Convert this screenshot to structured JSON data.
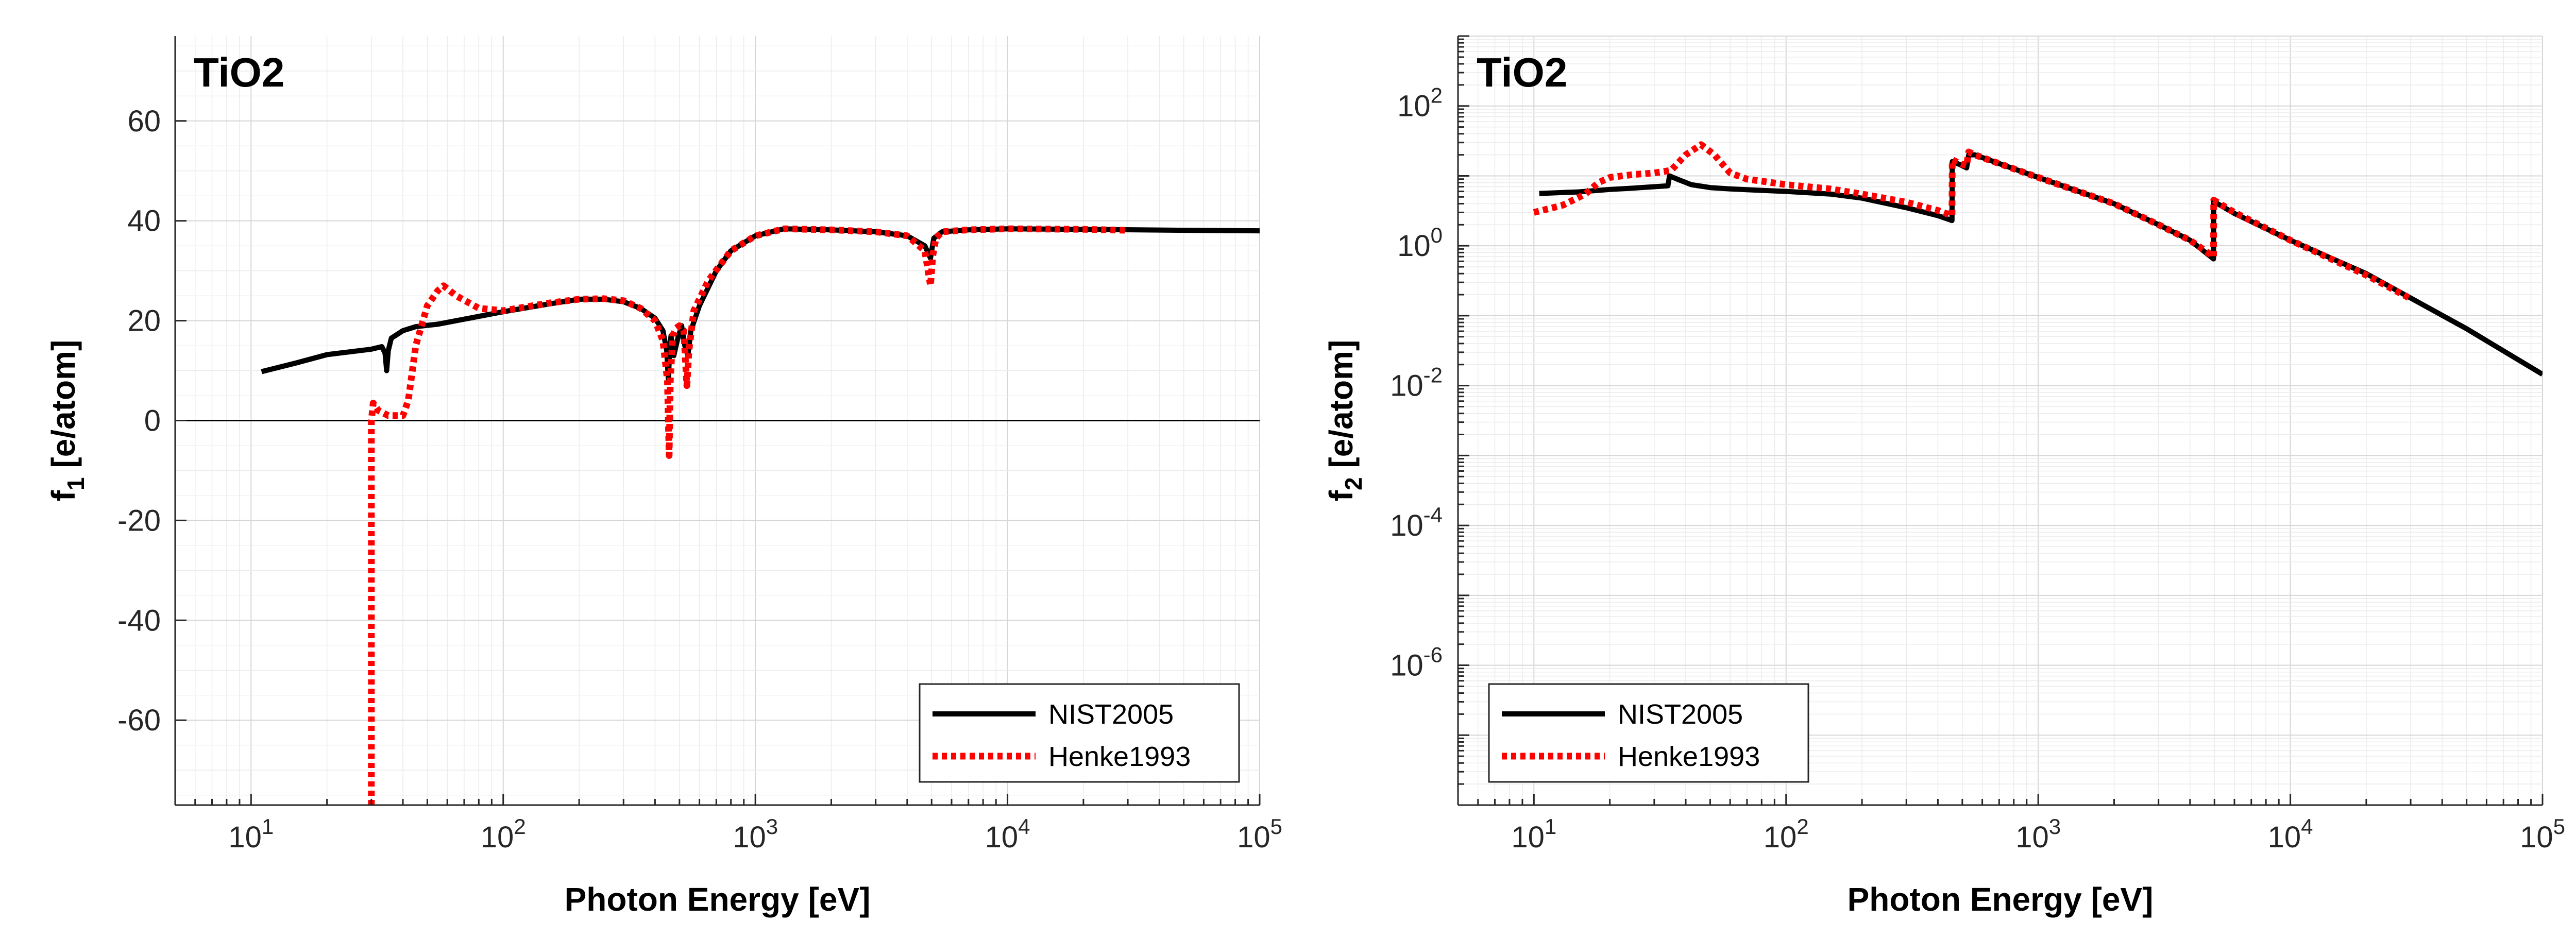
{
  "chart_data": [
    {
      "type": "line",
      "title": "TiO2",
      "xlabel": "Photon Energy [eV]",
      "ylabel_main": "f",
      "ylabel_sub": "1",
      "ylabel_rest": " [e/atom]",
      "xscale": "log",
      "yscale": "linear",
      "xlim": [
        5,
        100000
      ],
      "ylim": [
        -77,
        77
      ],
      "x_ticks": [
        {
          "value": 10,
          "base": "10",
          "exp": "1"
        },
        {
          "value": 100,
          "base": "10",
          "exp": "2"
        },
        {
          "value": 1000,
          "base": "10",
          "exp": "3"
        },
        {
          "value": 10000,
          "base": "10",
          "exp": "4"
        },
        {
          "value": 100000,
          "base": "10",
          "exp": "5"
        }
      ],
      "y_ticks": [
        {
          "value": 60,
          "label": "60"
        },
        {
          "value": 40,
          "label": "40"
        },
        {
          "value": 20,
          "label": "20"
        },
        {
          "value": 0,
          "label": "0"
        },
        {
          "value": -20,
          "label": "-20"
        },
        {
          "value": -40,
          "label": "-40"
        },
        {
          "value": -60,
          "label": "-60"
        }
      ],
      "grid": true,
      "zero_line": true,
      "legend_position": "bottom-right",
      "series": [
        {
          "name": "NIST2005",
          "color": "#000000",
          "style": "solid",
          "points": [
            [
              11,
              9.8
            ],
            [
              15,
              11.5
            ],
            [
              20,
              13.2
            ],
            [
              25,
              13.8
            ],
            [
              30,
              14.3
            ],
            [
              33,
              14.8
            ],
            [
              34,
              13.5
            ],
            [
              34.5,
              10
            ],
            [
              35,
              14
            ],
            [
              36,
              16.5
            ],
            [
              40,
              18
            ],
            [
              45,
              18.8
            ],
            [
              55,
              19.3
            ],
            [
              70,
              20.3
            ],
            [
              100,
              21.8
            ],
            [
              150,
              23.3
            ],
            [
              200,
              24.3
            ],
            [
              250,
              24.3
            ],
            [
              300,
              23.8
            ],
            [
              350,
              22.5
            ],
            [
              400,
              20.5
            ],
            [
              430,
              18
            ],
            [
              445,
              14
            ],
            [
              452,
              8
            ],
            [
              457,
              14
            ],
            [
              463,
              17
            ],
            [
              475,
              13
            ],
            [
              490,
              16
            ],
            [
              510,
              19
            ],
            [
              525,
              15
            ],
            [
              540,
              13
            ],
            [
              555,
              18
            ],
            [
              600,
              23
            ],
            [
              700,
              30
            ],
            [
              800,
              34
            ],
            [
              1000,
              37
            ],
            [
              1300,
              38.4
            ],
            [
              2000,
              38.2
            ],
            [
              3000,
              37.8
            ],
            [
              4000,
              37
            ],
            [
              4700,
              35
            ],
            [
              4950,
              32.5
            ],
            [
              5000,
              34
            ],
            [
              5100,
              36.5
            ],
            [
              5500,
              37.8
            ],
            [
              7000,
              38.2
            ],
            [
              10000,
              38.4
            ],
            [
              20000,
              38.3
            ],
            [
              50000,
              38.1
            ],
            [
              100000,
              38
            ]
          ]
        },
        {
          "name": "Henke1993",
          "color": "#ff0000",
          "style": "dotted",
          "points": [
            [
              30,
              -77
            ],
            [
              30,
              0
            ],
            [
              30.5,
              3.5
            ],
            [
              32,
              2
            ],
            [
              35,
              1
            ],
            [
              40,
              1
            ],
            [
              42,
              4
            ],
            [
              45,
              15
            ],
            [
              50,
              23
            ],
            [
              55,
              26
            ],
            [
              58,
              27
            ],
            [
              65,
              25
            ],
            [
              80,
              22.5
            ],
            [
              100,
              22
            ],
            [
              150,
              23.5
            ],
            [
              200,
              24.3
            ],
            [
              250,
              24.4
            ],
            [
              300,
              24
            ],
            [
              350,
              22.5
            ],
            [
              400,
              20
            ],
            [
              430,
              16
            ],
            [
              448,
              8
            ],
            [
              455,
              -7
            ],
            [
              460,
              8
            ],
            [
              470,
              17
            ],
            [
              485,
              18.5
            ],
            [
              500,
              19
            ],
            [
              520,
              18
            ],
            [
              535,
              7
            ],
            [
              545,
              14
            ],
            [
              570,
              22
            ],
            [
              650,
              28
            ],
            [
              800,
              34
            ],
            [
              1000,
              37
            ],
            [
              1300,
              38.4
            ],
            [
              2000,
              38.2
            ],
            [
              3000,
              37.8
            ],
            [
              4000,
              37
            ],
            [
              4700,
              34
            ],
            [
              4950,
              27
            ],
            [
              5050,
              33
            ],
            [
              5200,
              36.5
            ],
            [
              5500,
              37.8
            ],
            [
              7000,
              38.2
            ],
            [
              10000,
              38.4
            ],
            [
              20000,
              38.3
            ],
            [
              30000,
              38.1
            ]
          ]
        }
      ]
    },
    {
      "type": "line",
      "title": "TiO2",
      "xlabel": "Photon Energy [eV]",
      "ylabel_main": "f",
      "ylabel_sub": "2",
      "ylabel_rest": " [e/atom]",
      "xscale": "log",
      "yscale": "log",
      "xlim": [
        5,
        100000
      ],
      "ylim": [
        1e-08,
        1000
      ],
      "x_ticks": [
        {
          "value": 10,
          "base": "10",
          "exp": "1"
        },
        {
          "value": 100,
          "base": "10",
          "exp": "2"
        },
        {
          "value": 1000,
          "base": "10",
          "exp": "3"
        },
        {
          "value": 10000,
          "base": "10",
          "exp": "4"
        },
        {
          "value": 100000,
          "base": "10",
          "exp": "5"
        }
      ],
      "y_ticks": [
        {
          "value": 100,
          "base": "10",
          "exp": "2"
        },
        {
          "value": 1,
          "base": "10",
          "exp": "0"
        },
        {
          "value": 0.01,
          "base": "10",
          "exp": "-2"
        },
        {
          "value": 0.0001,
          "base": "10",
          "exp": "-4"
        },
        {
          "value": 1e-06,
          "base": "10",
          "exp": "-6"
        }
      ],
      "grid": true,
      "zero_line": false,
      "legend_position": "bottom-left",
      "series": [
        {
          "name": "NIST2005",
          "color": "#000000",
          "style": "solid",
          "points": [
            [
              10.5,
              5.6
            ],
            [
              15,
              5.9
            ],
            [
              20,
              6.4
            ],
            [
              25,
              6.7
            ],
            [
              30,
              7.0
            ],
            [
              34,
              7.2
            ],
            [
              34.5,
              10
            ],
            [
              37,
              9
            ],
            [
              42,
              7.5
            ],
            [
              50,
              6.8
            ],
            [
              60,
              6.5
            ],
            [
              80,
              6.2
            ],
            [
              100,
              6.0
            ],
            [
              150,
              5.5
            ],
            [
              200,
              4.8
            ],
            [
              300,
              3.5
            ],
            [
              400,
              2.7
            ],
            [
              455,
              2.3
            ],
            [
              456,
              16
            ],
            [
              490,
              14.5
            ],
            [
              520,
              13
            ],
            [
              530,
              20
            ],
            [
              560,
              20
            ],
            [
              700,
              15
            ],
            [
              1000,
              9.5
            ],
            [
              2000,
              4
            ],
            [
              3000,
              2
            ],
            [
              4000,
              1.2
            ],
            [
              4960,
              0.65
            ],
            [
              4965,
              4.3
            ],
            [
              6000,
              2.9
            ],
            [
              10000,
              1.2
            ],
            [
              20000,
              0.4
            ],
            [
              50000,
              0.065
            ],
            [
              100000,
              0.0145
            ]
          ]
        },
        {
          "name": "Henke1993",
          "color": "#ff0000",
          "style": "dotted",
          "points": [
            [
              10,
              3
            ],
            [
              13,
              3.8
            ],
            [
              16,
              5.5
            ],
            [
              18,
              8
            ],
            [
              20,
              9.5
            ],
            [
              25,
              10.5
            ],
            [
              30,
              11
            ],
            [
              35,
              12
            ],
            [
              40,
              20
            ],
            [
              46,
              28
            ],
            [
              52,
              20
            ],
            [
              60,
              11
            ],
            [
              70,
              9
            ],
            [
              100,
              7.5
            ],
            [
              150,
              6.5
            ],
            [
              200,
              5.5
            ],
            [
              300,
              4.2
            ],
            [
              400,
              3.2
            ],
            [
              455,
              2.7
            ],
            [
              456,
              17
            ],
            [
              490,
              15
            ],
            [
              520,
              14
            ],
            [
              530,
              22
            ],
            [
              560,
              20
            ],
            [
              700,
              15
            ],
            [
              1000,
              9.5
            ],
            [
              2000,
              4
            ],
            [
              3000,
              2
            ],
            [
              4000,
              1.2
            ],
            [
              4960,
              0.7
            ],
            [
              4965,
              4.5
            ],
            [
              6000,
              3
            ],
            [
              10000,
              1.2
            ],
            [
              20000,
              0.38
            ],
            [
              30000,
              0.175
            ]
          ]
        }
      ]
    }
  ]
}
